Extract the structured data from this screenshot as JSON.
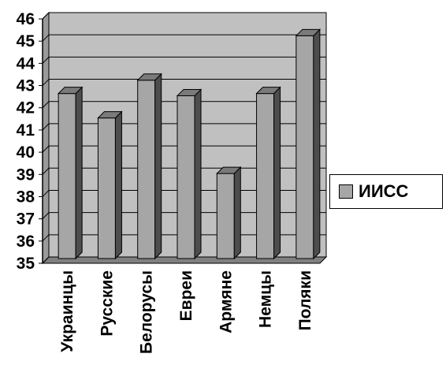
{
  "chart_data": {
    "type": "bar",
    "style": "3d-column",
    "categories": [
      "Украинцы",
      "Русские",
      "Белорусы",
      "Евреи",
      "Армяне",
      "Немцы",
      "Поляки"
    ],
    "series": [
      {
        "name": "ИИСС",
        "values": [
          42.5,
          41.4,
          43.1,
          42.4,
          38.9,
          42.5,
          45.1
        ],
        "color": "#a6a6a6"
      }
    ],
    "ylim": [
      35,
      46
    ],
    "yticks": [
      "35",
      "36",
      "37",
      "38",
      "39",
      "40",
      "41",
      "42",
      "43",
      "44",
      "45",
      "46"
    ],
    "grid": true,
    "plot_background": "#c0c0c0",
    "legend_position": "right"
  }
}
